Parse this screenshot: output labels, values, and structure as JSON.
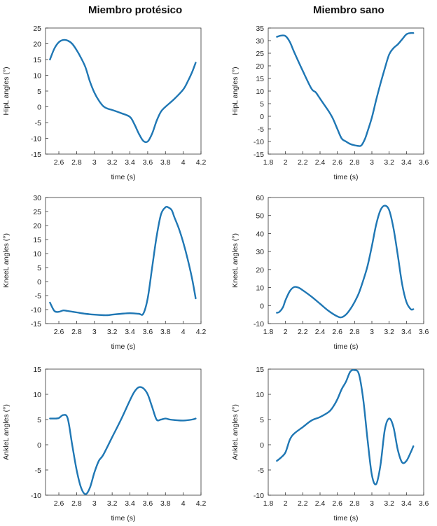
{
  "titles": {
    "left": "Miembro protésico",
    "right": "Miembro sano"
  },
  "colors": {
    "line": "#1f77b4",
    "axis": "#333333"
  },
  "chart_data": [
    {
      "type": "line",
      "id": "hip-prosthetic",
      "xlabel": "time (s)",
      "ylabel": "HipL angles (°)",
      "xlim": [
        2.45,
        4.2
      ],
      "ylim": [
        -15,
        25
      ],
      "xticks": [
        2.6,
        2.8,
        3,
        3.2,
        3.4,
        3.6,
        3.8,
        4,
        4.2
      ],
      "xtick_labels": [
        "2.6",
        "2.8",
        "3",
        "3.2",
        "3.4",
        "3.6",
        "3.8",
        "4",
        "4.2"
      ],
      "yticks": [
        -15,
        -10,
        -5,
        0,
        5,
        10,
        15,
        20,
        25
      ],
      "ytick_labels": [
        "-15",
        "-10",
        "-5",
        "0",
        "5",
        "10",
        "15",
        "20",
        "25"
      ],
      "x": [
        2.5,
        2.55,
        2.6,
        2.65,
        2.7,
        2.75,
        2.8,
        2.85,
        2.9,
        2.95,
        3.0,
        3.05,
        3.1,
        3.15,
        3.2,
        3.3,
        3.4,
        3.45,
        3.5,
        3.55,
        3.6,
        3.65,
        3.7,
        3.75,
        3.8,
        3.9,
        4.0,
        4.05,
        4.1,
        4.14
      ],
      "y": [
        15,
        18.5,
        20.5,
        21.2,
        21,
        20,
        18,
        15.5,
        12.5,
        8,
        4.5,
        2,
        0.2,
        -0.6,
        -1,
        -2,
        -3.2,
        -5.5,
        -8.5,
        -10.8,
        -11,
        -8.5,
        -4.5,
        -1.5,
        0,
        2.5,
        5.5,
        8,
        11,
        14
      ]
    },
    {
      "type": "line",
      "id": "hip-healthy",
      "xlabel": "time (s)",
      "ylabel": "HipL angles (°)",
      "xlim": [
        1.8,
        3.6
      ],
      "ylim": [
        -15,
        35
      ],
      "xticks": [
        1.8,
        2,
        2.2,
        2.4,
        2.6,
        2.8,
        3,
        3.2,
        3.4,
        3.6
      ],
      "xtick_labels": [
        "1.8",
        "2",
        "2.2",
        "2.4",
        "2.6",
        "2.8",
        "3",
        "3.2",
        "3.4",
        "3.6"
      ],
      "yticks": [
        -15,
        -10,
        -5,
        0,
        5,
        10,
        15,
        20,
        25,
        30,
        35
      ],
      "ytick_labels": [
        "-15",
        "-10",
        "-5",
        "0",
        "5",
        "10",
        "15",
        "20",
        "25",
        "30",
        "35"
      ],
      "x": [
        1.9,
        1.95,
        2.0,
        2.05,
        2.1,
        2.2,
        2.3,
        2.35,
        2.4,
        2.45,
        2.5,
        2.55,
        2.6,
        2.65,
        2.7,
        2.75,
        2.8,
        2.85,
        2.88,
        2.92,
        2.95,
        3.0,
        3.05,
        3.1,
        3.15,
        3.2,
        3.25,
        3.3,
        3.35,
        3.4,
        3.45,
        3.48
      ],
      "y": [
        31.5,
        32,
        31.8,
        29.5,
        25.5,
        18,
        11,
        9.5,
        7,
        4.5,
        2,
        -1,
        -5,
        -8.8,
        -10,
        -11,
        -11.5,
        -11.8,
        -11.5,
        -9,
        -6,
        -0.5,
        6.5,
        13,
        19,
        24.5,
        27,
        28.5,
        30.5,
        32.5,
        33,
        33
      ]
    },
    {
      "type": "line",
      "id": "knee-prosthetic",
      "xlabel": "time (s)",
      "ylabel": "KneeL angles (°)",
      "xlim": [
        2.45,
        4.2
      ],
      "ylim": [
        -15,
        30
      ],
      "xticks": [
        2.6,
        2.8,
        3,
        3.2,
        3.4,
        3.6,
        3.8,
        4,
        4.2
      ],
      "xtick_labels": [
        "2.6",
        "2.8",
        "3",
        "3.2",
        "3.4",
        "3.6",
        "3.8",
        "4",
        "4.2"
      ],
      "yticks": [
        -15,
        -10,
        -5,
        0,
        5,
        10,
        15,
        20,
        25,
        30
      ],
      "ytick_labels": [
        "-15",
        "-10",
        "-5",
        "0",
        "5",
        "10",
        "15",
        "20",
        "25",
        "30"
      ],
      "x": [
        2.5,
        2.55,
        2.6,
        2.65,
        2.7,
        2.8,
        2.9,
        3.0,
        3.1,
        3.15,
        3.2,
        3.3,
        3.4,
        3.5,
        3.55,
        3.6,
        3.65,
        3.7,
        3.75,
        3.8,
        3.83,
        3.87,
        3.9,
        3.95,
        4.0,
        4.05,
        4.1,
        4.14
      ],
      "y": [
        -7.5,
        -10.5,
        -10.8,
        -10.3,
        -10.5,
        -11,
        -11.5,
        -11.8,
        -12,
        -12,
        -11.8,
        -11.5,
        -11.3,
        -11.5,
        -11.5,
        -6,
        5,
        16,
        24,
        26.5,
        26.5,
        25.5,
        23,
        19,
        14,
        8,
        1,
        -6
      ]
    },
    {
      "type": "line",
      "id": "knee-healthy",
      "xlabel": "time (s)",
      "ylabel": "KneeL angles (°)",
      "xlim": [
        1.8,
        3.6
      ],
      "ylim": [
        -10,
        60
      ],
      "xticks": [
        1.8,
        2,
        2.2,
        2.4,
        2.6,
        2.8,
        3,
        3.2,
        3.4,
        3.6
      ],
      "xtick_labels": [
        "1.8",
        "2",
        "2.2",
        "2.4",
        "2.6",
        "2.8",
        "3",
        "3.2",
        "3.4",
        "3.6"
      ],
      "yticks": [
        -10,
        0,
        10,
        20,
        30,
        40,
        50,
        60
      ],
      "ytick_labels": [
        "-10",
        "0",
        "10",
        "20",
        "30",
        "40",
        "50",
        "60"
      ],
      "x": [
        1.9,
        1.93,
        1.97,
        2.0,
        2.05,
        2.1,
        2.15,
        2.2,
        2.3,
        2.4,
        2.5,
        2.6,
        2.65,
        2.7,
        2.75,
        2.8,
        2.85,
        2.9,
        2.95,
        3.0,
        3.05,
        3.1,
        3.15,
        3.2,
        3.25,
        3.3,
        3.35,
        3.4,
        3.45,
        3.48
      ],
      "y": [
        -4,
        -3.5,
        -1,
        3,
        8,
        10.3,
        10,
        8.5,
        5,
        1,
        -3,
        -6,
        -6.5,
        -5,
        -2,
        2,
        7,
        14,
        22,
        33,
        45,
        53,
        55.5,
        53,
        43,
        28,
        12,
        2,
        -2,
        -2
      ]
    },
    {
      "type": "line",
      "id": "ankle-prosthetic",
      "xlabel": "time (s)",
      "ylabel": "AnkleL angles (°)",
      "xlim": [
        2.45,
        4.2
      ],
      "ylim": [
        -10,
        15
      ],
      "xticks": [
        2.6,
        2.8,
        3,
        3.2,
        3.4,
        3.6,
        3.8,
        4,
        4.2
      ],
      "xtick_labels": [
        "2.6",
        "2.8",
        "3",
        "3.2",
        "3.4",
        "3.6",
        "3.8",
        "4",
        "4.2"
      ],
      "yticks": [
        -10,
        -5,
        0,
        5,
        10,
        15
      ],
      "ytick_labels": [
        "-10",
        "-5",
        "0",
        "5",
        "10",
        "15"
      ],
      "x": [
        2.5,
        2.55,
        2.6,
        2.65,
        2.7,
        2.75,
        2.8,
        2.85,
        2.9,
        2.95,
        3.0,
        3.05,
        3.1,
        3.2,
        3.3,
        3.4,
        3.45,
        3.5,
        3.55,
        3.6,
        3.65,
        3.7,
        3.75,
        3.8,
        3.85,
        3.9,
        4.0,
        4.1,
        4.14
      ],
      "y": [
        5.2,
        5.2,
        5.3,
        5.9,
        5.2,
        0,
        -5,
        -8.5,
        -9.8,
        -8.5,
        -5.5,
        -3.2,
        -2,
        1.5,
        5,
        8.8,
        10.5,
        11.4,
        11.2,
        10,
        7.5,
        5,
        5,
        5.2,
        5,
        4.9,
        4.8,
        5,
        5.2
      ]
    },
    {
      "type": "line",
      "id": "ankle-healthy",
      "xlabel": "time (s)",
      "ylabel": "AnkleL angles (°)",
      "xlim": [
        1.8,
        3.6
      ],
      "ylim": [
        -10,
        15
      ],
      "xticks": [
        1.8,
        2,
        2.2,
        2.4,
        2.6,
        2.8,
        3,
        3.2,
        3.4,
        3.6
      ],
      "xtick_labels": [
        "1.8",
        "2",
        "2.2",
        "2.4",
        "2.6",
        "2.8",
        "3",
        "3.2",
        "3.4",
        "3.6"
      ],
      "yticks": [
        -10,
        -5,
        0,
        5,
        10,
        15
      ],
      "ytick_labels": [
        "-10",
        "-5",
        "0",
        "5",
        "10",
        "15"
      ],
      "x": [
        1.9,
        1.95,
        2.0,
        2.05,
        2.1,
        2.2,
        2.3,
        2.4,
        2.5,
        2.55,
        2.6,
        2.65,
        2.7,
        2.75,
        2.8,
        2.85,
        2.9,
        2.95,
        3.0,
        3.05,
        3.1,
        3.15,
        3.2,
        3.25,
        3.3,
        3.35,
        3.4,
        3.45,
        3.48
      ],
      "y": [
        -3.2,
        -2.5,
        -1.5,
        1,
        2.2,
        3.5,
        4.8,
        5.5,
        6.5,
        7.5,
        9,
        11,
        12.5,
        14.5,
        14.8,
        14,
        9,
        1,
        -6,
        -7.8,
        -4,
        3,
        5.2,
        3.5,
        -1,
        -3.5,
        -3.2,
        -1.5,
        -0.3
      ]
    }
  ]
}
